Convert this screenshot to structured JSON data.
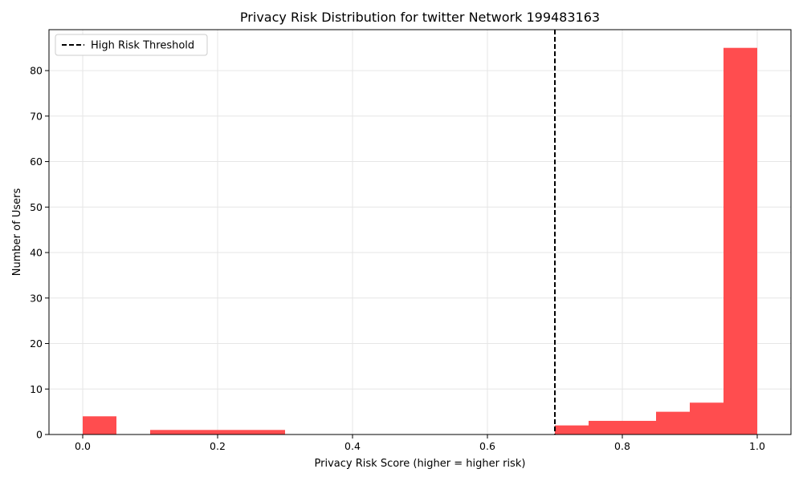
{
  "chart_data": {
    "type": "bar",
    "title": "Privacy Risk Distribution for twitter Network 199483163",
    "xlabel": "Privacy Risk Score (higher = higher risk)",
    "ylabel": "Number of Users",
    "xlim": [
      -0.05,
      1.05
    ],
    "ylim": [
      0,
      89
    ],
    "xticks": [
      0.0,
      0.2,
      0.4,
      0.6,
      0.8,
      1.0
    ],
    "xtick_labels": [
      "0.0",
      "0.2",
      "0.4",
      "0.6",
      "0.8",
      "1.0"
    ],
    "yticks": [
      0,
      10,
      20,
      30,
      40,
      50,
      60,
      70,
      80
    ],
    "ytick_labels": [
      "0",
      "10",
      "20",
      "30",
      "40",
      "50",
      "60",
      "70",
      "80"
    ],
    "grid": true,
    "bin_width": 0.05,
    "bin_starts": [
      0.0,
      0.05,
      0.1,
      0.15,
      0.2,
      0.25,
      0.3,
      0.35,
      0.4,
      0.45,
      0.5,
      0.55,
      0.6,
      0.65,
      0.7,
      0.75,
      0.8,
      0.85,
      0.9,
      0.95
    ],
    "series": [
      {
        "values": [
          4,
          0,
          1,
          1,
          1,
          1,
          0,
          0,
          0,
          0,
          0,
          0,
          0,
          0,
          2,
          3,
          3,
          5,
          7,
          85
        ],
        "color": "#ff4d4f"
      }
    ],
    "threshold": {
      "x": 0.7,
      "label": "High Risk Threshold",
      "color": "#000000",
      "style": "dashed"
    },
    "legend": {
      "position": "top-left",
      "entries": [
        "High Risk Threshold"
      ]
    }
  }
}
